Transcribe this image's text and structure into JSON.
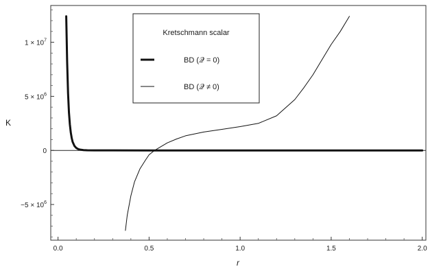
{
  "chart_data": {
    "type": "line",
    "title": "",
    "xlabel": "r",
    "ylabel": "K",
    "xlim": [
      -0.04,
      2.02
    ],
    "ylim": [
      -8300000,
      13400000
    ],
    "frame": true,
    "grid": false,
    "legend_position": "top-center",
    "x_ticks": [
      {
        "value": 0.0,
        "label": "0.0"
      },
      {
        "value": 0.5,
        "label": "0.5"
      },
      {
        "value": 1.0,
        "label": "1.0"
      },
      {
        "value": 1.5,
        "label": "1.5"
      },
      {
        "value": 2.0,
        "label": "2.0"
      }
    ],
    "y_ticks": [
      {
        "value": 10000000,
        "label_base": "1 × 10",
        "label_exp": "7"
      },
      {
        "value": 5000000,
        "label_base": "5 × 10",
        "label_exp": "6"
      },
      {
        "value": 0,
        "label_base": "0",
        "label_exp": ""
      },
      {
        "value": -5000000,
        "label_base": "−5 × 10",
        "label_exp": "6"
      }
    ],
    "legend": {
      "title": "Kretschmann scalar",
      "entries": [
        {
          "label": "BD (𝒬 = 0)",
          "style": "thick"
        },
        {
          "label": "BD (𝒬 ≠ 0)",
          "style": "thin"
        }
      ]
    },
    "series": [
      {
        "label_ref": 0,
        "stroke_width": 3,
        "color": "#111111",
        "x": [
          0.045,
          0.05,
          0.055,
          0.06,
          0.065,
          0.07,
          0.075,
          0.08,
          0.09,
          0.1,
          0.11,
          0.12,
          0.14,
          0.16,
          0.2,
          0.3,
          0.5,
          1.0,
          1.5,
          2.0
        ],
        "y": [
          12400000,
          8200000,
          5300000,
          3500000,
          2400000,
          1650000,
          1150000,
          800000,
          420000,
          230000,
          130000,
          75000,
          28000,
          12000,
          3000,
          500,
          80,
          10,
          2,
          0
        ]
      },
      {
        "label_ref": 1,
        "stroke_width": 1,
        "color": "#111111",
        "x": [
          0.37,
          0.38,
          0.4,
          0.42,
          0.45,
          0.48,
          0.5,
          0.53,
          0.55,
          0.6,
          0.65,
          0.7,
          0.8,
          0.9,
          1.0,
          1.1,
          1.2,
          1.3,
          1.35,
          1.4,
          1.45,
          1.5,
          1.55,
          1.6
        ],
        "y": [
          -7400000,
          -6000000,
          -4200000,
          -2900000,
          -1700000,
          -900000,
          -400000,
          0,
          200000,
          700000,
          1050000,
          1350000,
          1700000,
          1950000,
          2200000,
          2500000,
          3200000,
          4700000,
          5800000,
          7000000,
          8400000,
          9800000,
          11000000,
          12400000
        ]
      }
    ]
  }
}
